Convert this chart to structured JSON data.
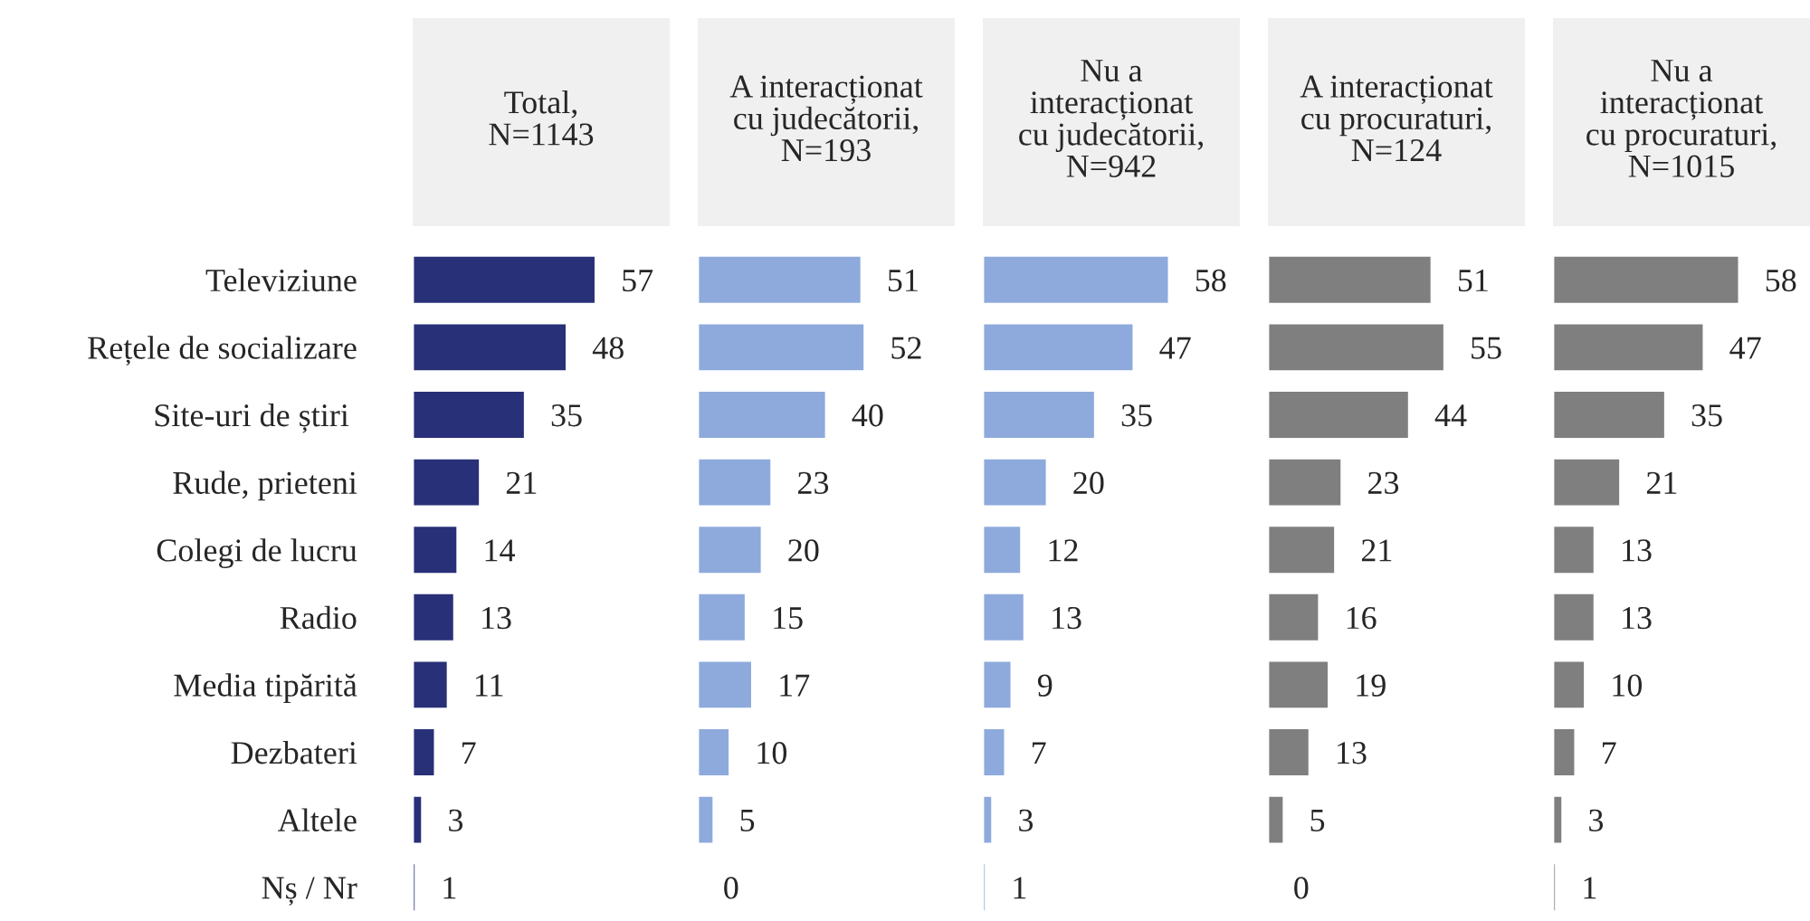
{
  "chart_data": [
    {
      "type": "bar",
      "orientation": "horizontal",
      "title": "Total,\nN=1143",
      "categories": [
        "Televiziune",
        "Rețele de socializare",
        "Site-uri de știri ",
        "Rude, prieteni",
        "Colegi de lucru",
        "Radio",
        "Media tipărită",
        "Dezbateri",
        "Altele",
        "Nș / Nr"
      ],
      "values": [
        57,
        48,
        35,
        21,
        14,
        13,
        11,
        7,
        3,
        1
      ],
      "color": "#283078",
      "data_labels": true,
      "tick_labels": "y"
    },
    {
      "type": "bar",
      "orientation": "horizontal",
      "title": "A interacționat\ncu judecătorii,\nN=193",
      "categories": [
        null,
        null,
        null,
        null,
        null,
        null,
        null,
        null,
        null,
        null
      ],
      "values": [
        51,
        52,
        40,
        23,
        20,
        15,
        17,
        10,
        5,
        0
      ],
      "color": "#8eaadc",
      "data_labels": true,
      "tick_labels": false
    },
    {
      "type": "bar",
      "orientation": "horizontal",
      "title": "Nu a\ninteracționat\ncu judecătorii,\nN=942",
      "categories": [
        null,
        null,
        null,
        null,
        null,
        null,
        null,
        null,
        null,
        null
      ],
      "values": [
        58,
        47,
        35,
        20,
        12,
        13,
        9,
        7,
        3,
        1
      ],
      "color": "#8eaadc",
      "data_labels": true,
      "tick_labels": false
    },
    {
      "type": "bar",
      "orientation": "horizontal",
      "title": "A interacționat\ncu procuraturi,\nN=124",
      "categories": [
        null,
        null,
        null,
        null,
        null,
        null,
        null,
        null,
        null,
        null
      ],
      "values": [
        51,
        55,
        44,
        23,
        21,
        16,
        19,
        13,
        5,
        0
      ],
      "color": "#7f7f7f",
      "data_labels": true,
      "tick_labels": false
    },
    {
      "type": "bar",
      "orientation": "horizontal",
      "title": "Nu a\ninteracționat\ncu procuraturi,\nN=1015",
      "categories": [
        null,
        null,
        null,
        null,
        null,
        null,
        null,
        null,
        null,
        null
      ],
      "values": [
        58,
        47,
        35,
        21,
        13,
        13,
        10,
        7,
        3,
        1
      ],
      "color": "#7f7f7f",
      "data_labels": true,
      "tick_labels": false
    }
  ]
}
